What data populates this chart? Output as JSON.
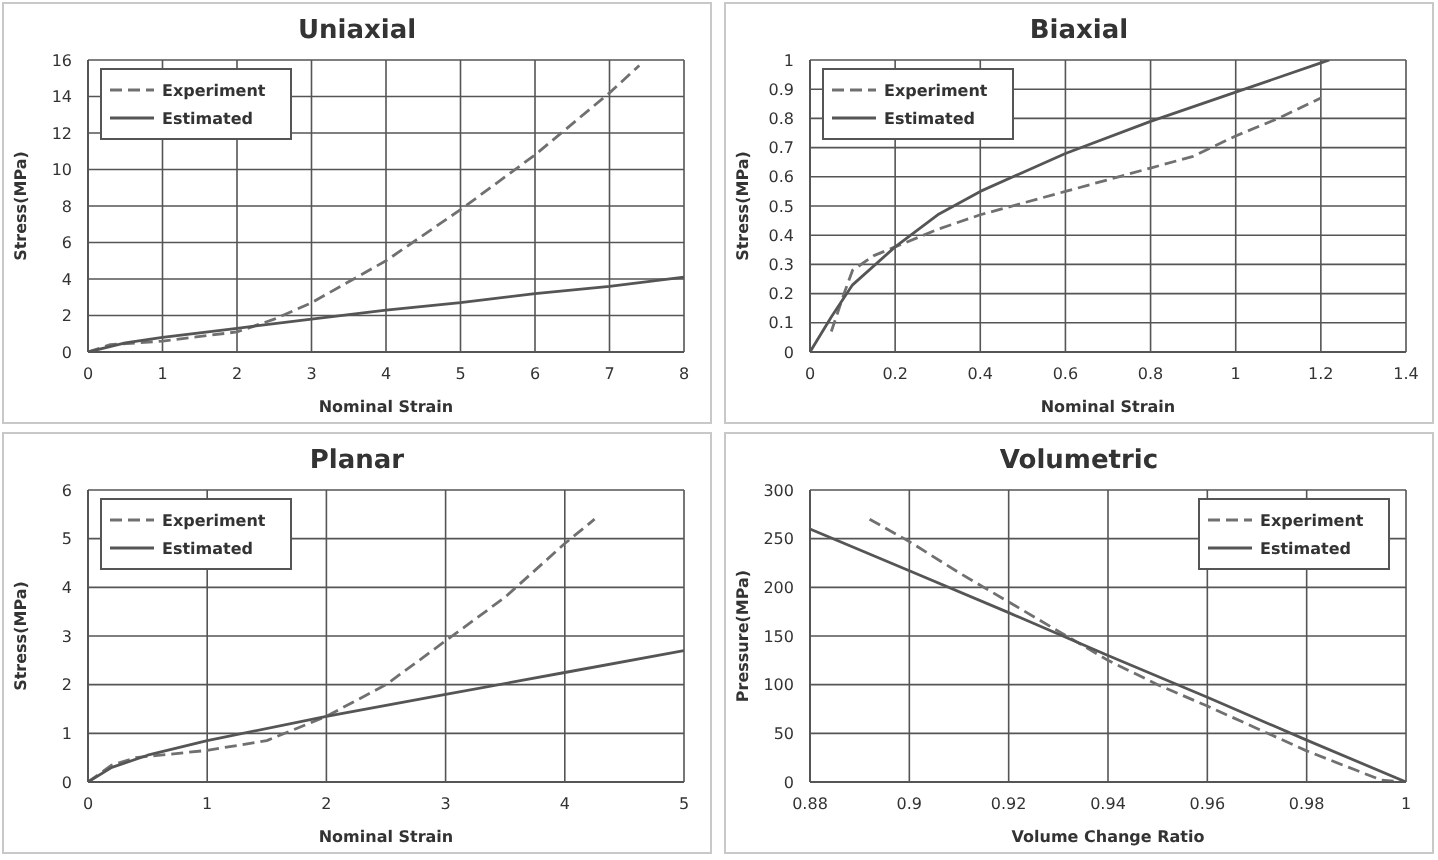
{
  "chart_data": [
    {
      "type": "line",
      "title": "Uniaxial",
      "xlabel": "Nominal Strain",
      "ylabel": "Stress(MPa)",
      "xlim": [
        0,
        8
      ],
      "xticks": [
        0,
        1,
        2,
        3,
        4,
        5,
        6,
        7,
        8
      ],
      "ylim": [
        0,
        16
      ],
      "yticks": [
        0,
        2,
        4,
        6,
        8,
        10,
        12,
        14,
        16
      ],
      "grid": true,
      "legend": "top left",
      "marker": "none",
      "series": [
        {
          "name": "Experiment",
          "color": "#707070",
          "line_style": "dashed",
          "x": [
            0,
            0.3,
            1,
            2,
            2.5,
            3,
            4,
            5,
            6,
            7,
            7.4
          ],
          "values": [
            0,
            0.4,
            0.6,
            1.1,
            1.8,
            2.7,
            5,
            7.8,
            10.8,
            14.2,
            15.7
          ]
        },
        {
          "name": "Estimated",
          "color": "#555555",
          "line_style": "solid",
          "x": [
            0,
            0.5,
            1,
            2,
            3,
            4,
            5,
            6,
            7,
            8
          ],
          "values": [
            0,
            0.5,
            0.8,
            1.3,
            1.8,
            2.3,
            2.7,
            3.2,
            3.6,
            4.1
          ]
        }
      ]
    },
    {
      "type": "line",
      "title": "Biaxial",
      "xlabel": "Nominal Strain",
      "ylabel": "Stress(MPa)",
      "xlim": [
        0,
        1.4
      ],
      "xticks": [
        0,
        0.2,
        0.4,
        0.6,
        0.8,
        1,
        1.2,
        1.4
      ],
      "ylim": [
        0,
        1
      ],
      "yticks": [
        0,
        0.1,
        0.2,
        0.3,
        0.4,
        0.5,
        0.6,
        0.7,
        0.8,
        0.9,
        1
      ],
      "grid": true,
      "legend": "top left",
      "marker": "none",
      "series": [
        {
          "name": "Experiment",
          "color": "#707070",
          "line_style": "dashed",
          "x": [
            0.05,
            0.08,
            0.1,
            0.15,
            0.2,
            0.3,
            0.4,
            0.5,
            0.6,
            0.7,
            0.8,
            0.9,
            1,
            1.1,
            1.2
          ],
          "values": [
            0.07,
            0.2,
            0.28,
            0.33,
            0.36,
            0.42,
            0.47,
            0.51,
            0.55,
            0.59,
            0.63,
            0.67,
            0.74,
            0.8,
            0.87
          ]
        },
        {
          "name": "Estimated",
          "color": "#555555",
          "line_style": "solid",
          "x": [
            0,
            0.05,
            0.1,
            0.2,
            0.3,
            0.4,
            0.6,
            0.8,
            1,
            1.2,
            1.22
          ],
          "values": [
            0,
            0.12,
            0.23,
            0.36,
            0.47,
            0.55,
            0.68,
            0.79,
            0.89,
            0.99,
            1
          ]
        }
      ]
    },
    {
      "type": "line",
      "title": "Planar",
      "xlabel": "Nominal Strain",
      "ylabel": "Stress(MPa)",
      "xlim": [
        0,
        5
      ],
      "xticks": [
        0,
        1,
        2,
        3,
        4,
        5
      ],
      "ylim": [
        0,
        6
      ],
      "yticks": [
        0,
        1,
        2,
        3,
        4,
        5,
        6
      ],
      "grid": true,
      "legend": "top left",
      "marker": "none",
      "series": [
        {
          "name": "Experiment",
          "color": "#707070",
          "line_style": "dashed",
          "x": [
            0,
            0.2,
            0.4,
            1,
            1.5,
            2,
            2.5,
            3,
            3.5,
            4,
            4.25
          ],
          "values": [
            0,
            0.35,
            0.5,
            0.65,
            0.85,
            1.35,
            2,
            2.9,
            3.8,
            4.9,
            5.4
          ]
        },
        {
          "name": "Estimated",
          "color": "#555555",
          "line_style": "solid",
          "x": [
            0,
            0.2,
            0.5,
            1,
            2,
            3,
            4,
            5
          ],
          "values": [
            0,
            0.3,
            0.55,
            0.85,
            1.35,
            1.8,
            2.25,
            2.7
          ]
        }
      ]
    },
    {
      "type": "line",
      "title": "Volumetric",
      "xlabel": "Volume Change Ratio",
      "ylabel": "Pressure(MPa)",
      "xlim": [
        0.88,
        1
      ],
      "xticks": [
        0.88,
        0.9,
        0.92,
        0.94,
        0.96,
        0.98,
        1
      ],
      "ylim": [
        0,
        300
      ],
      "yticks": [
        0,
        50,
        100,
        150,
        200,
        250,
        300
      ],
      "grid": true,
      "legend": "top right",
      "marker": "none",
      "series": [
        {
          "name": "Experiment",
          "color": "#707070",
          "line_style": "dashed",
          "x": [
            0.892,
            0.9,
            0.91,
            0.92,
            0.93,
            0.94,
            0.95,
            0.96,
            0.97,
            0.98,
            0.99,
            0.995,
            1
          ],
          "values": [
            270,
            247,
            215,
            185,
            155,
            125,
            100,
            78,
            55,
            32,
            12,
            2,
            0
          ]
        },
        {
          "name": "Estimated",
          "color": "#555555",
          "line_style": "solid",
          "x": [
            0.88,
            0.9,
            0.92,
            0.94,
            0.96,
            0.98,
            1
          ],
          "values": [
            260,
            217,
            174,
            130,
            87,
            43,
            0
          ]
        }
      ]
    }
  ]
}
